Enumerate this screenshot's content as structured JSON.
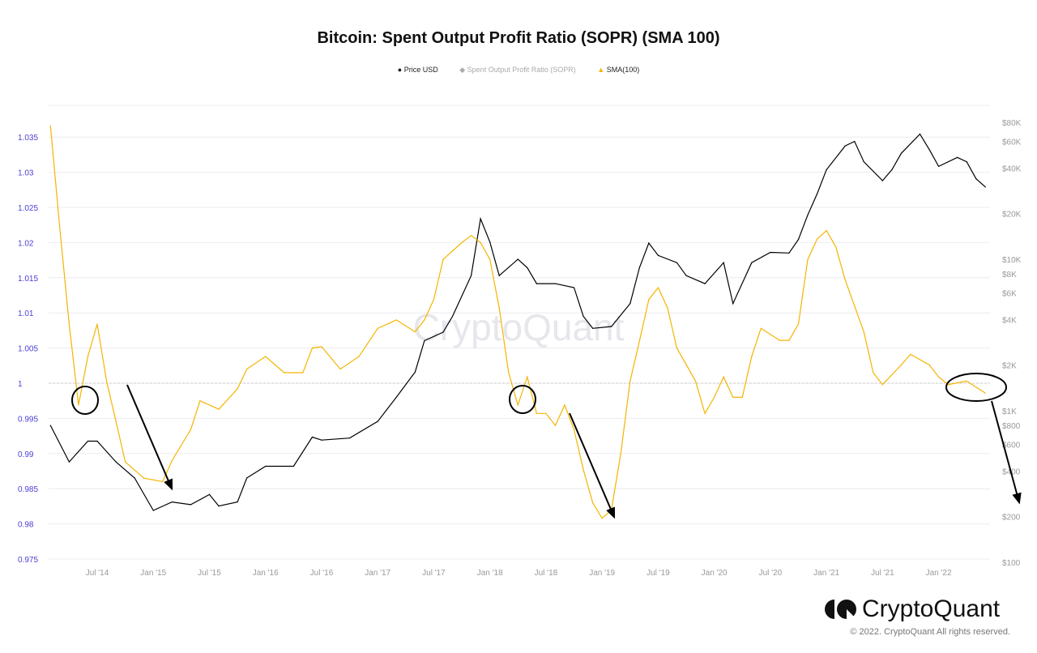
{
  "chart_data": {
    "type": "line",
    "title": "Bitcoin: Spent Output Profit Ratio (SOPR) (SMA 100)",
    "legend": [
      {
        "name": "Price USD",
        "marker": "circle",
        "color": "#000000"
      },
      {
        "name": "Spent Output Profit Ratio (SOPR)",
        "marker": "diamond",
        "color": "#bbbbbb",
        "hidden": true
      },
      {
        "name": "SMA(100)",
        "marker": "triangle",
        "color": "#f5b400"
      }
    ],
    "legend_placement": "top",
    "x_ticks": [
      "Jul '14",
      "Jan '15",
      "Jul '15",
      "Jan '16",
      "Jul '16",
      "Jan '17",
      "Jul '17",
      "Jan '18",
      "Jul '18",
      "Jan '19",
      "Jul '19",
      "Jan '20",
      "Jul '20",
      "Jan '21",
      "Jul '21",
      "Jan '22"
    ],
    "x_range": [
      "2014-02",
      "2022-06"
    ],
    "left_axis": {
      "ticks": [
        "1.035",
        "1.03",
        "1.025",
        "1.02",
        "1.015",
        "1.01",
        "1.005",
        "1",
        "0.995",
        "0.99",
        "0.985",
        "0.98",
        "0.975"
      ],
      "range": [
        0.975,
        1.037
      ],
      "color": "#4b3fd6"
    },
    "right_axis": {
      "scale": "log",
      "ticks": [
        "$80K",
        "$60K",
        "$40K",
        "$20K",
        "$10K",
        "$8K",
        "$6K",
        "$4K",
        "$2K",
        "$1K",
        "$800",
        "$600",
        "$400",
        "$200",
        "$100"
      ],
      "range": [
        100,
        100000
      ]
    },
    "grid": true,
    "reference_line": 1,
    "series": [
      {
        "name": "Price USD",
        "axis": "right",
        "color": "#000000",
        "points": [
          [
            "2014-02",
            800
          ],
          [
            "2014-04",
            460
          ],
          [
            "2014-06",
            630
          ],
          [
            "2014-07",
            630
          ],
          [
            "2014-09",
            460
          ],
          [
            "2014-11",
            360
          ],
          [
            "2015-01",
            220
          ],
          [
            "2015-03",
            250
          ],
          [
            "2015-05",
            240
          ],
          [
            "2015-07",
            280
          ],
          [
            "2015-08",
            235
          ],
          [
            "2015-10",
            250
          ],
          [
            "2015-11",
            360
          ],
          [
            "2016-01",
            430
          ],
          [
            "2016-04",
            430
          ],
          [
            "2016-06",
            670
          ],
          [
            "2016-07",
            640
          ],
          [
            "2016-10",
            660
          ],
          [
            "2017-01",
            850
          ],
          [
            "2017-03",
            1230
          ],
          [
            "2017-05",
            1800
          ],
          [
            "2017-06",
            2900
          ],
          [
            "2017-08",
            3300
          ],
          [
            "2017-09",
            4200
          ],
          [
            "2017-11",
            7800
          ],
          [
            "2017-12",
            18500
          ],
          [
            "2018-01",
            13000
          ],
          [
            "2018-02",
            7800
          ],
          [
            "2018-04",
            10000
          ],
          [
            "2018-05",
            8800
          ],
          [
            "2018-06",
            6900
          ],
          [
            "2018-08",
            6900
          ],
          [
            "2018-10",
            6500
          ],
          [
            "2018-11",
            4200
          ],
          [
            "2018-12",
            3500
          ],
          [
            "2019-02",
            3600
          ],
          [
            "2019-04",
            5100
          ],
          [
            "2019-05",
            8800
          ],
          [
            "2019-06",
            12800
          ],
          [
            "2019-07",
            10600
          ],
          [
            "2019-09",
            9500
          ],
          [
            "2019-10",
            7800
          ],
          [
            "2019-12",
            6900
          ],
          [
            "2020-02",
            9500
          ],
          [
            "2020-03",
            5100
          ],
          [
            "2020-05",
            9500
          ],
          [
            "2020-07",
            11100
          ],
          [
            "2020-09",
            11000
          ],
          [
            "2020-10",
            13500
          ],
          [
            "2020-11",
            19600
          ],
          [
            "2020-12",
            27000
          ],
          [
            "2021-01",
            39000
          ],
          [
            "2021-03",
            56000
          ],
          [
            "2021-04",
            60000
          ],
          [
            "2021-05",
            44000
          ],
          [
            "2021-07",
            33000
          ],
          [
            "2021-08",
            39000
          ],
          [
            "2021-09",
            50000
          ],
          [
            "2021-11",
            67000
          ],
          [
            "2021-12",
            53000
          ],
          [
            "2022-01",
            41000
          ],
          [
            "2022-03",
            47000
          ],
          [
            "2022-04",
            44000
          ],
          [
            "2022-05",
            34000
          ],
          [
            "2022-06",
            30000
          ]
        ]
      },
      {
        "name": "SMA(100)",
        "axis": "left",
        "color": "#f5b400",
        "points": [
          [
            "2014-02",
            1.0366
          ],
          [
            "2014-03",
            1.022
          ],
          [
            "2014-04",
            1.0084
          ],
          [
            "2014-05",
            0.9969
          ],
          [
            "2014-06",
            1.0038
          ],
          [
            "2014-07",
            1.0084
          ],
          [
            "2014-08",
            1.0003
          ],
          [
            "2014-09",
            0.9946
          ],
          [
            "2014-10",
            0.9888
          ],
          [
            "2014-12",
            0.9865
          ],
          [
            "2015-02",
            0.986
          ],
          [
            "2015-03",
            0.989
          ],
          [
            "2015-05",
            0.9934
          ],
          [
            "2015-06",
            0.9975
          ],
          [
            "2015-08",
            0.9963
          ],
          [
            "2015-10",
            0.9992
          ],
          [
            "2015-11",
            1.002
          ],
          [
            "2016-01",
            1.0038
          ],
          [
            "2016-03",
            1.0015
          ],
          [
            "2016-05",
            1.0015
          ],
          [
            "2016-06",
            1.005
          ],
          [
            "2016-07",
            1.0052
          ],
          [
            "2016-09",
            1.002
          ],
          [
            "2016-11",
            1.0038
          ],
          [
            "2017-01",
            1.0078
          ],
          [
            "2017-03",
            1.009
          ],
          [
            "2017-05",
            1.0073
          ],
          [
            "2017-06",
            1.009
          ],
          [
            "2017-07",
            1.0119
          ],
          [
            "2017-08",
            1.0176
          ],
          [
            "2017-10",
            1.02
          ],
          [
            "2017-11",
            1.021
          ],
          [
            "2017-12",
            1.02
          ],
          [
            "2018-01",
            1.0176
          ],
          [
            "2018-02",
            1.0107
          ],
          [
            "2018-03",
            1.0015
          ],
          [
            "2018-04",
            0.9969
          ],
          [
            "2018-05",
            1.0009
          ],
          [
            "2018-06",
            0.9957
          ],
          [
            "2018-07",
            0.9957
          ],
          [
            "2018-08",
            0.994
          ],
          [
            "2018-09",
            0.9969
          ],
          [
            "2018-10",
            0.9934
          ],
          [
            "2018-11",
            0.9877
          ],
          [
            "2018-12",
            0.983
          ],
          [
            "2019-01",
            0.9808
          ],
          [
            "2019-02",
            0.982
          ],
          [
            "2019-03",
            0.99
          ],
          [
            "2019-04",
            1.0003
          ],
          [
            "2019-05",
            1.006
          ],
          [
            "2019-06",
            1.0119
          ],
          [
            "2019-07",
            1.0136
          ],
          [
            "2019-08",
            1.0107
          ],
          [
            "2019-09",
            1.005
          ],
          [
            "2019-11",
            1.0003
          ],
          [
            "2019-12",
            0.9957
          ],
          [
            "2020-01",
            0.998
          ],
          [
            "2020-02",
            1.0009
          ],
          [
            "2020-03",
            0.998
          ],
          [
            "2020-04",
            0.998
          ],
          [
            "2020-05",
            1.0038
          ],
          [
            "2020-06",
            1.0078
          ],
          [
            "2020-08",
            1.0061
          ],
          [
            "2020-09",
            1.0061
          ],
          [
            "2020-10",
            1.0084
          ],
          [
            "2020-11",
            1.0176
          ],
          [
            "2020-12",
            1.0205
          ],
          [
            "2021-01",
            1.0217
          ],
          [
            "2021-02",
            1.0194
          ],
          [
            "2021-03",
            1.0147
          ],
          [
            "2021-05",
            1.0073
          ],
          [
            "2021-06",
            1.0015
          ],
          [
            "2021-07",
            0.9998
          ],
          [
            "2021-09",
            1.0026
          ],
          [
            "2021-10",
            1.0041
          ],
          [
            "2021-12",
            1.0026
          ],
          [
            "2022-01",
            1.0009
          ],
          [
            "2022-02",
            0.9998
          ],
          [
            "2022-04",
            1.0003
          ],
          [
            "2022-06",
            0.9986
          ]
        ]
      }
    ],
    "annotations": [
      "circle",
      "circle",
      "circle",
      "arrow-down",
      "arrow-down",
      "arrow-down"
    ],
    "watermark": "CryptoQuant"
  },
  "footer": {
    "logo": "CryptoQuant",
    "copyright": "© 2022. CryptoQuant All rights reserved."
  }
}
